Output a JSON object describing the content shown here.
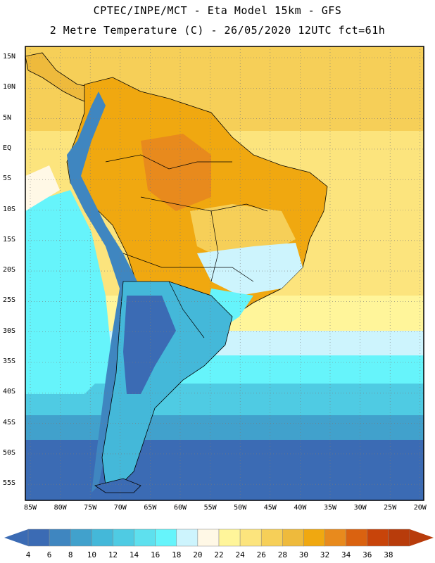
{
  "header": {
    "title_line1": "CPTEC/INPE/MCT -  Eta Model 15km - GFS",
    "title_line2": "2 Metre Temperature (C) - 26/05/2020 12UTC fct=61h"
  },
  "map": {
    "lat_labels": [
      "15N",
      "10N",
      "5N",
      "EQ",
      "5S",
      "10S",
      "15S",
      "20S",
      "25S",
      "30S",
      "35S",
      "40S",
      "45S",
      "50S",
      "55S"
    ],
    "lon_labels": [
      "85W",
      "80W",
      "75W",
      "70W",
      "65W",
      "60W",
      "55W",
      "50W",
      "45W",
      "40W",
      "35W",
      "30W",
      "25W",
      "20W"
    ]
  },
  "colorbar": {
    "labels": [
      "4",
      "6",
      "8",
      "10",
      "12",
      "14",
      "16",
      "18",
      "20",
      "22",
      "24",
      "26",
      "28",
      "30",
      "32",
      "34",
      "36",
      "38"
    ],
    "colors": [
      "#3b6bb4",
      "#3f86c0",
      "#41a1cc",
      "#44b8d9",
      "#4fcbe3",
      "#5ee0ee",
      "#66f4fb",
      "#cdf4fd",
      "#fff8e6",
      "#fff59a",
      "#fce47d",
      "#f6cf58",
      "#eeba3c",
      "#f0a810",
      "#e88a1d",
      "#da6210",
      "#c8440a",
      "#b83c0b"
    ],
    "left_arrow_color": "#3b6bb4",
    "right_arrow_color": "#b83c0b"
  }
}
